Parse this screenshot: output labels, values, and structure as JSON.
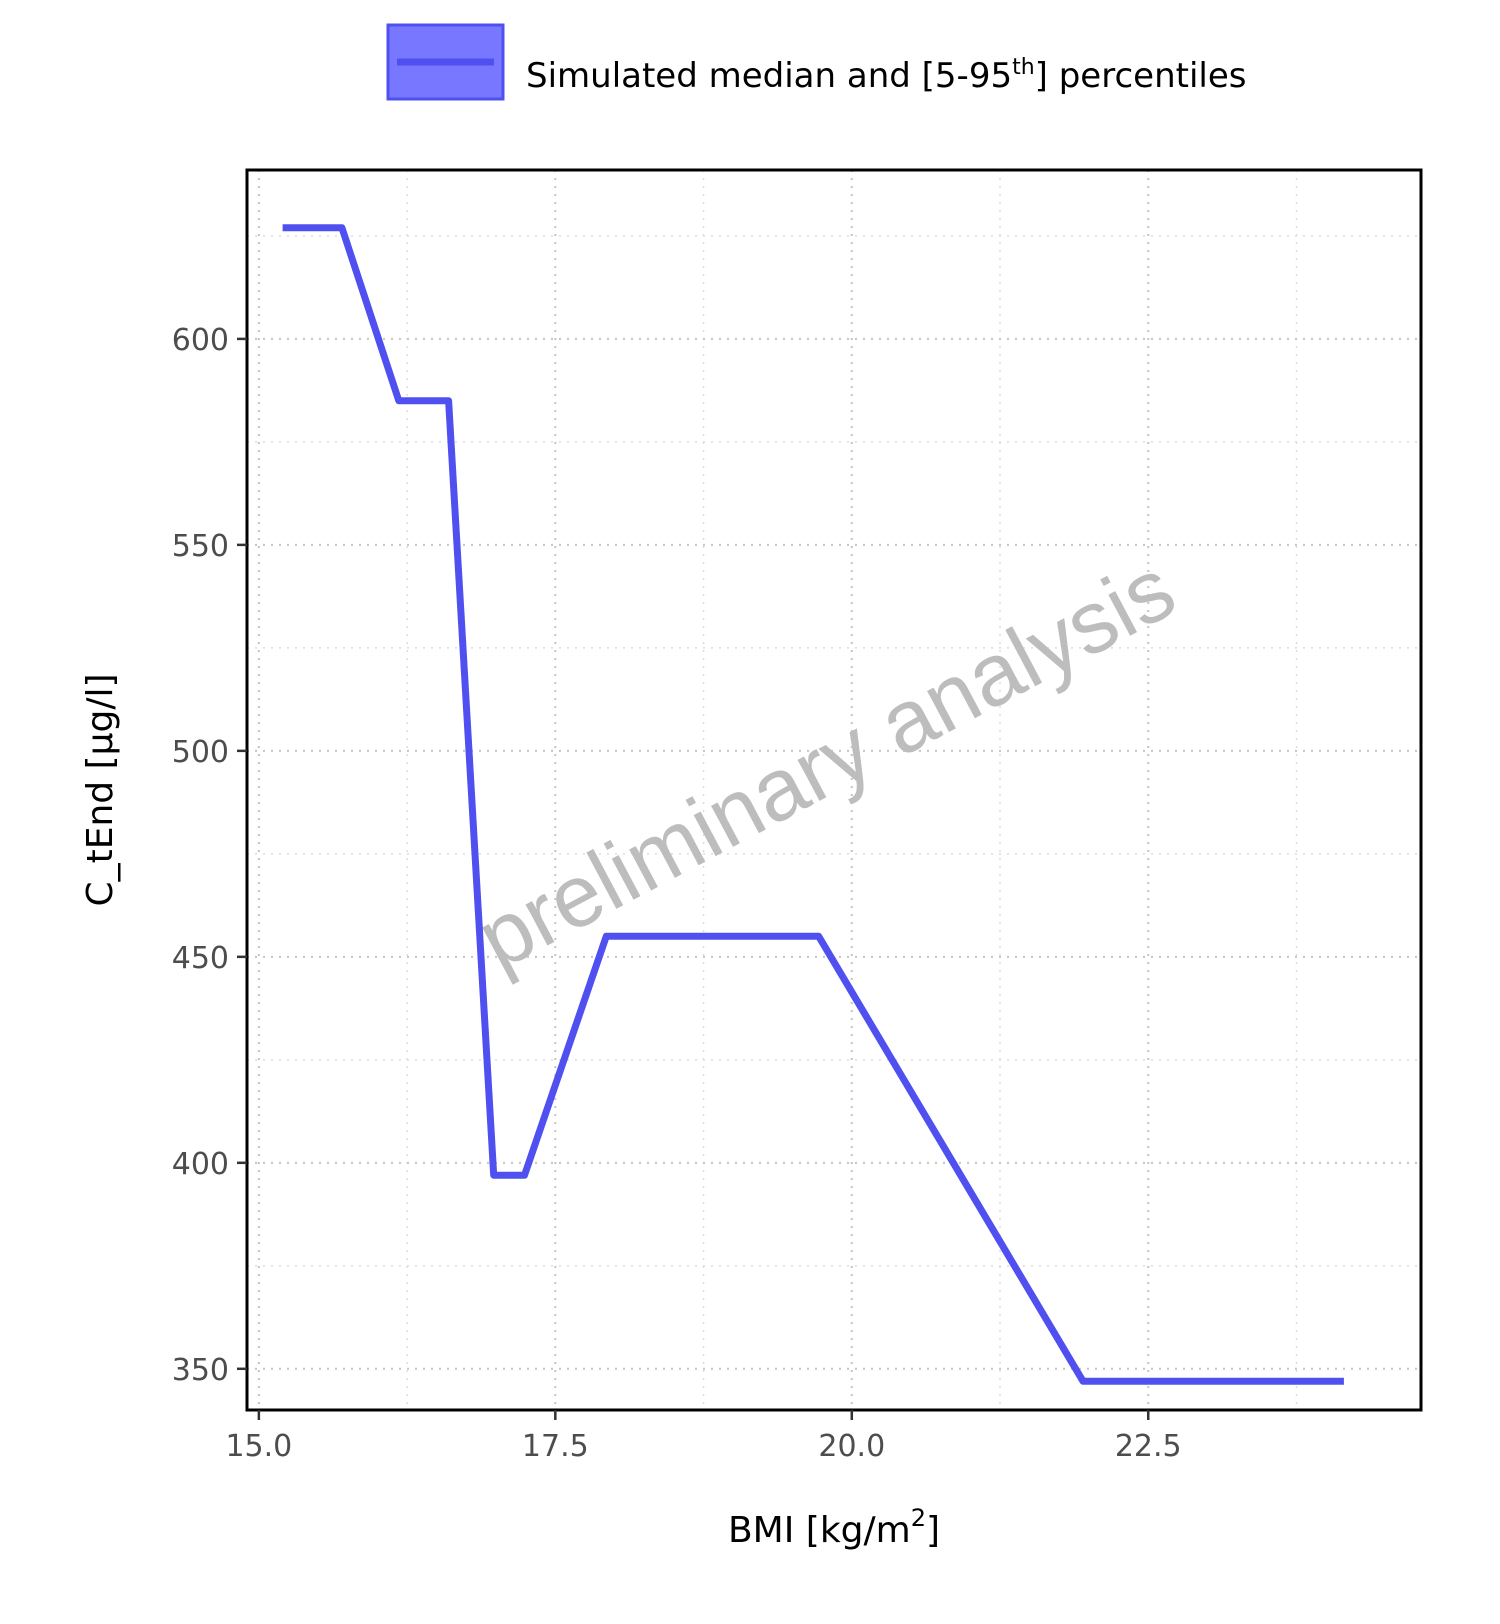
{
  "chart_data": {
    "type": "line",
    "title": "",
    "xlabel": "BMI [kg/m",
    "xlabel_superscript": "2",
    "xlabel_suffix": "]",
    "ylabel": "C_tEnd [µg/l]",
    "xlim": [
      14.9,
      24.8
    ],
    "ylim": [
      340,
      641
    ],
    "x_ticks": [
      15.0,
      17.5,
      20.0,
      22.5
    ],
    "x_tick_labels": [
      "15.0",
      "17.5",
      "20.0",
      "22.5"
    ],
    "x_minor_ticks": [
      16.25,
      18.75,
      21.25,
      23.75
    ],
    "y_ticks": [
      350,
      400,
      450,
      500,
      550,
      600
    ],
    "y_tick_labels": [
      "350",
      "400",
      "450",
      "500",
      "550",
      "600"
    ],
    "y_minor_ticks": [
      375,
      425,
      475,
      525,
      575,
      625
    ],
    "grid": true,
    "legend_position": "top",
    "watermark": "preliminary analysis",
    "colors": {
      "line": "#5050f0",
      "legend_fill": "#7777ff"
    },
    "series": [
      {
        "name": "Simulated median and [5-95",
        "name_superscript": "th",
        "name_suffix": "] percentiles",
        "x": [
          15.2,
          15.7,
          16.18,
          16.6,
          16.98,
          17.24,
          17.93,
          19.72,
          21.95,
          24.15
        ],
        "y": [
          627,
          627,
          585,
          585,
          397,
          397,
          455,
          455,
          347,
          347
        ]
      }
    ]
  }
}
